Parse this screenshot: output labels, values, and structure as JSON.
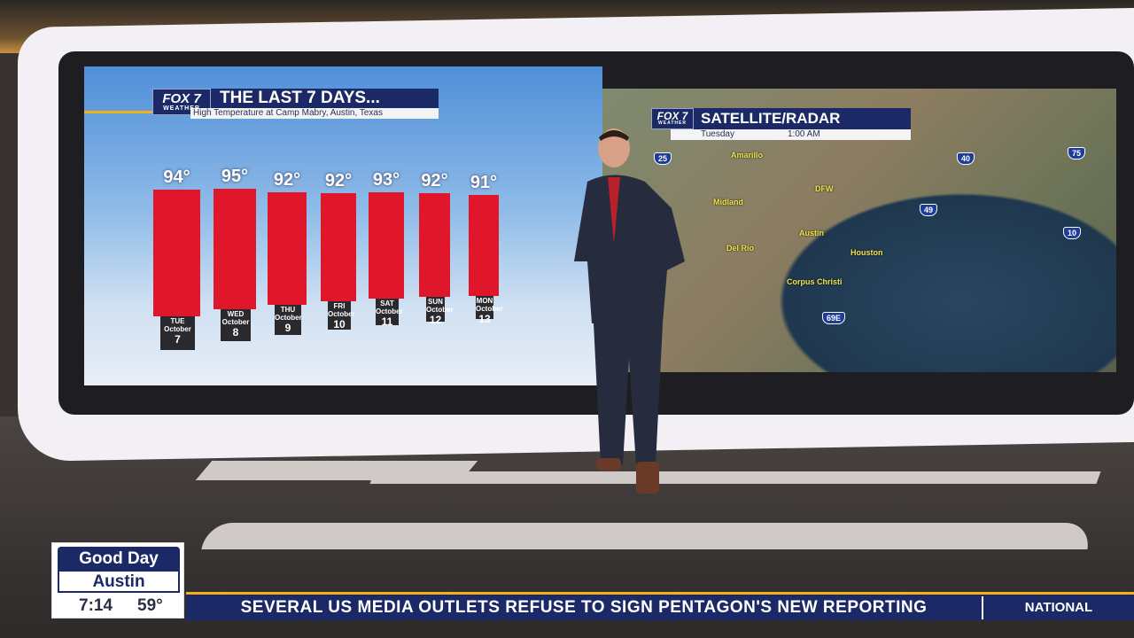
{
  "left_graphic": {
    "logo": {
      "line1": "FOX 7",
      "line2": "WEATHER"
    },
    "title": "THE LAST 7 DAYS...",
    "subtitle": "High Temperature at Camp Mabry, Austin, Texas"
  },
  "chart_data": {
    "type": "bar",
    "title": "THE LAST 7 DAYS...",
    "subtitle": "High Temperature at Camp Mabry, Austin, Texas",
    "categories": [
      {
        "day": "TUE",
        "month": "October",
        "date": "7"
      },
      {
        "day": "WED",
        "month": "October",
        "date": "8"
      },
      {
        "day": "THU",
        "month": "October",
        "date": "9"
      },
      {
        "day": "FRI",
        "month": "October",
        "date": "10"
      },
      {
        "day": "SAT",
        "month": "October",
        "date": "11"
      },
      {
        "day": "SUN",
        "month": "October",
        "date": "12"
      },
      {
        "day": "MON",
        "month": "October",
        "date": "13"
      }
    ],
    "values": [
      94,
      95,
      92,
      92,
      93,
      92,
      91
    ],
    "value_labels": [
      "94°",
      "95°",
      "92°",
      "92°",
      "93°",
      "92°",
      "91°"
    ],
    "bar_color": "#e0162b"
  },
  "right_graphic": {
    "logo": {
      "line1": "FOX 7",
      "line2": "WEATHER"
    },
    "title": "SATELLITE/RADAR",
    "day": "Tuesday",
    "time": "1:00 AM",
    "cities": [
      "Amarillo",
      "Midland",
      "DFW",
      "Austin",
      "Del Rio",
      "Houston",
      "Corpus Christi"
    ],
    "highways": [
      "25",
      "40",
      "75",
      "49",
      "10",
      "69E"
    ]
  },
  "bug": {
    "show_line1": "Good Day",
    "show_line2": "Austin",
    "time": "7:14",
    "temp": "59°"
  },
  "ticker": {
    "headline": "SEVERAL US MEDIA OUTLETS REFUSE TO SIGN PENTAGON'S NEW REPORTING",
    "section": "NATIONAL"
  },
  "colors": {
    "brand_navy": "#1b2a66",
    "ticker_accent": "#f0b020",
    "city_label": "#f2e54a"
  }
}
